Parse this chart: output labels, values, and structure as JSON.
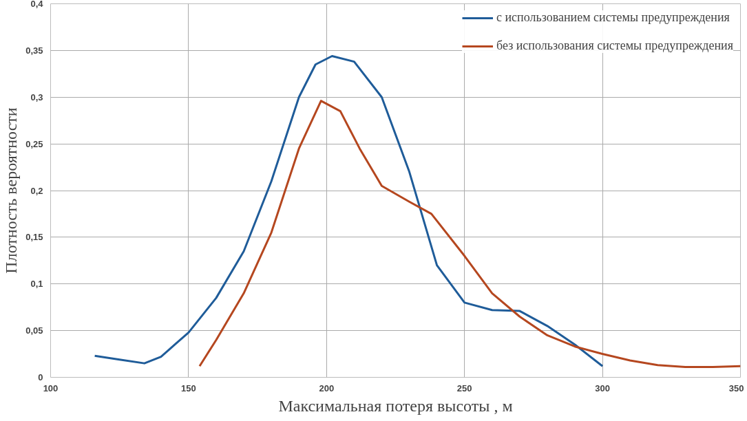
{
  "chart_data": {
    "type": "line",
    "xlabel": "Максимальная потеря высоты , м",
    "ylabel": "Плотность вероятности",
    "xlim": [
      100,
      350
    ],
    "xticks": [
      100,
      150,
      200,
      250,
      300,
      350
    ],
    "ylim": [
      0,
      0.4
    ],
    "yticks": [
      {
        "value": 0,
        "label": "0"
      },
      {
        "value": 0.05,
        "label": "0,05"
      },
      {
        "value": 0.1,
        "label": "0,1"
      },
      {
        "value": 0.15,
        "label": "0,15"
      },
      {
        "value": 0.2,
        "label": "0,2"
      },
      {
        "value": 0.25,
        "label": "0,25"
      },
      {
        "value": 0.3,
        "label": "0,3"
      },
      {
        "value": 0.35,
        "label": "0,35"
      },
      {
        "value": 0.4,
        "label": "0,4"
      }
    ],
    "grid": true,
    "legend": "top right",
    "marker": "none",
    "line_style": "solid",
    "series": [
      {
        "name": "с использованием системы предупреждения",
        "color": "#1f5c99",
        "x": [
          116,
          125,
          134,
          140,
          150,
          160,
          170,
          180,
          190,
          196,
          202,
          210,
          220,
          230,
          240,
          250,
          260,
          270,
          280,
          290,
          300
        ],
        "values": [
          0.023,
          0.019,
          0.015,
          0.022,
          0.048,
          0.085,
          0.135,
          0.21,
          0.3,
          0.335,
          0.344,
          0.338,
          0.3,
          0.22,
          0.12,
          0.08,
          0.072,
          0.071,
          0.055,
          0.035,
          0.012
        ]
      },
      {
        "name": "без использования системы предупреждения",
        "color": "#b5471f",
        "x": [
          154,
          160,
          170,
          180,
          190,
          198,
          205,
          212,
          220,
          230,
          238,
          250,
          260,
          270,
          280,
          290,
          300,
          310,
          320,
          330,
          340,
          350
        ],
        "values": [
          0.012,
          0.04,
          0.09,
          0.155,
          0.245,
          0.296,
          0.285,
          0.245,
          0.205,
          0.188,
          0.175,
          0.13,
          0.09,
          0.065,
          0.045,
          0.033,
          0.025,
          0.018,
          0.013,
          0.011,
          0.011,
          0.012
        ]
      }
    ]
  }
}
